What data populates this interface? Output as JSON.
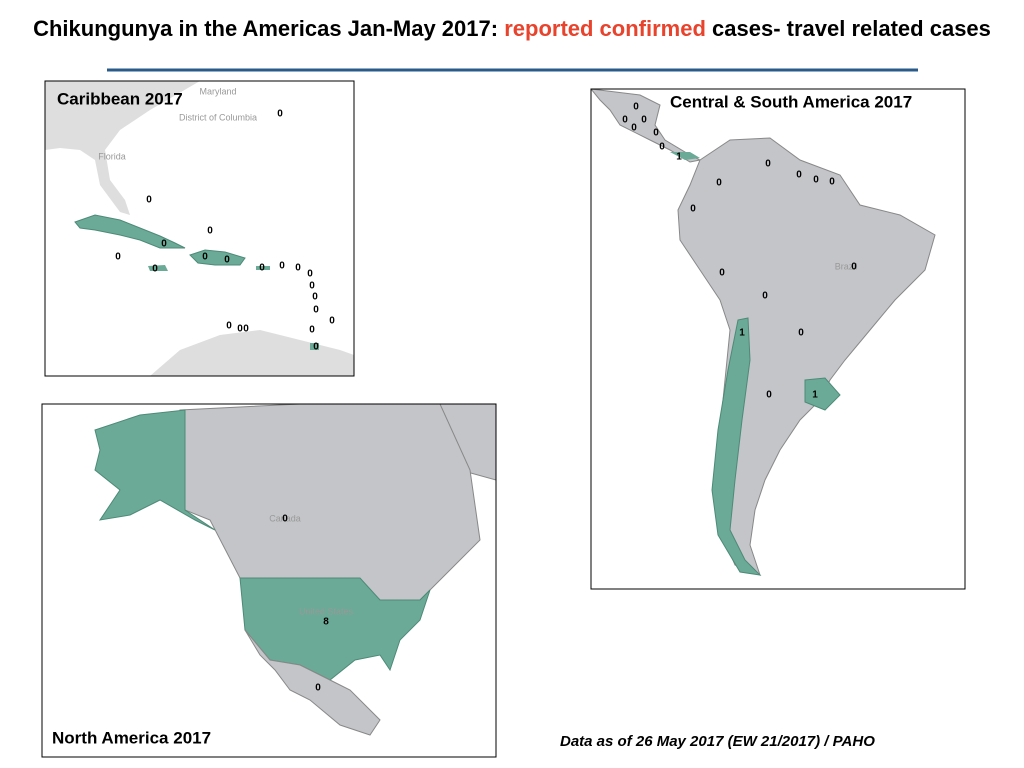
{
  "title": {
    "lead": "Chikungunya in the Americas Jan-May 2017:",
    "highlight": "reported confirmed",
    "tail": "cases- travel related cases"
  },
  "maps": [
    {
      "title": "Caribbean 2017",
      "places": [
        "Maryland",
        "District of Columbia",
        "Florida"
      ],
      "counts": [
        0,
        0,
        0,
        0,
        0,
        0,
        0,
        0,
        0,
        0,
        0,
        0,
        0,
        0,
        0,
        0,
        0,
        0,
        0,
        0,
        0
      ]
    },
    {
      "title": "Central & South America  2017",
      "places": [
        "Brazil"
      ],
      "counts": [
        0,
        0,
        0,
        0,
        0,
        0,
        1,
        0,
        0,
        0,
        0,
        0,
        0,
        0,
        0,
        0,
        1,
        0,
        0,
        1
      ]
    },
    {
      "title": "North America  2017",
      "places": [
        "Canada",
        "United States"
      ],
      "counts": [
        0,
        8,
        0
      ]
    }
  ],
  "footnote": "Data as of 26 May 2017 (EW 21/2017) / PAHO"
}
